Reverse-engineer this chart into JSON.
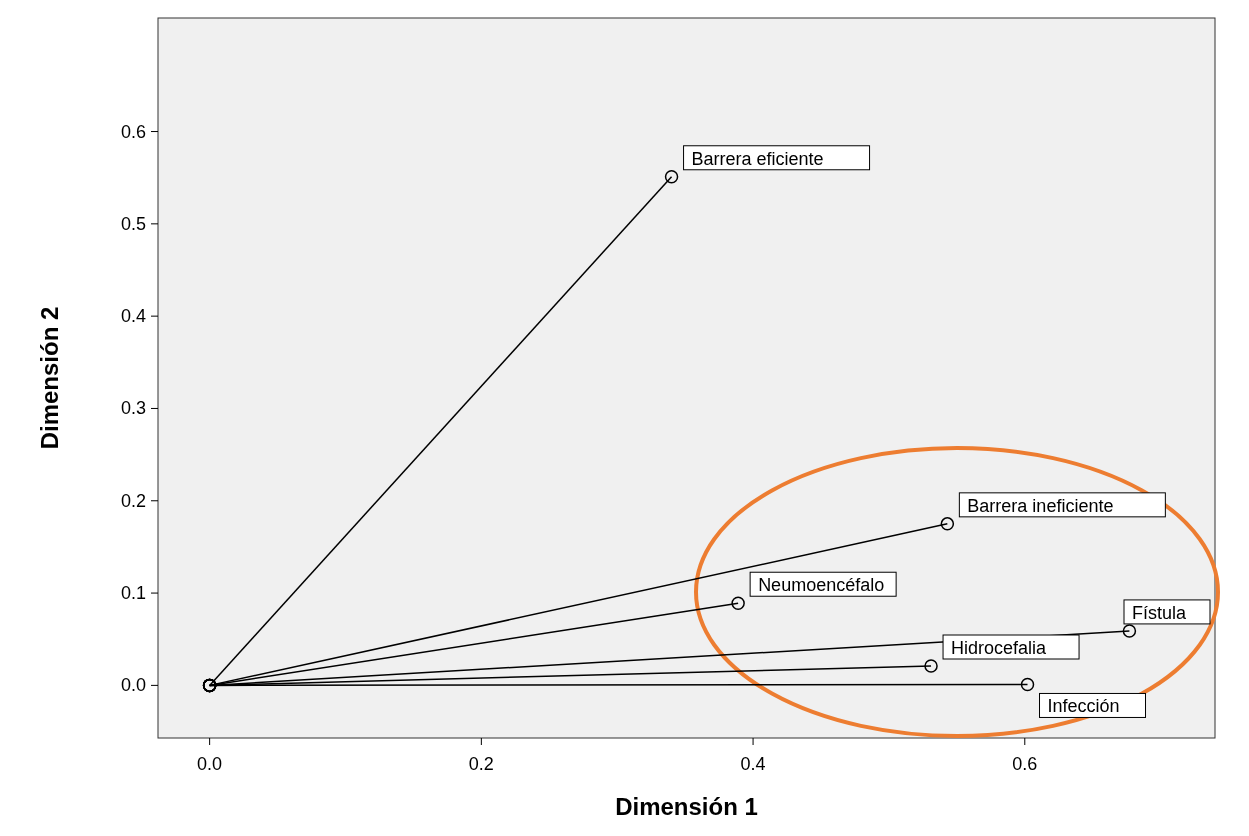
{
  "chart_data": {
    "type": "line",
    "xlabel": "Dimensión 1",
    "ylabel": "Dimensión 2",
    "xlim": [
      -0.038,
      0.74
    ],
    "ylim": [
      -0.057,
      0.723
    ],
    "xticks": [
      {
        "value": 0,
        "label": "0.0"
      },
      {
        "value": 0.2,
        "label": "0.2"
      },
      {
        "value": 0.4,
        "label": "0.4"
      },
      {
        "value": 0.6,
        "label": "0.6"
      }
    ],
    "yticks": [
      {
        "value": 0,
        "label": "0.0"
      },
      {
        "value": 0.1,
        "label": "0.1"
      },
      {
        "value": 0.2,
        "label": "0.2"
      },
      {
        "value": 0.3,
        "label": "0.3"
      },
      {
        "value": 0.4,
        "label": "0.4"
      },
      {
        "value": 0.5,
        "label": "0.5"
      },
      {
        "value": 0.6,
        "label": "0.6"
      }
    ],
    "grid": false,
    "marker": "circle",
    "line_style": "solid",
    "series": [
      {
        "name": "Barrera eficiente",
        "color": "#000000",
        "x": [
          0,
          0.34
        ],
        "values": [
          0,
          0.551
        ]
      },
      {
        "name": "Barrera ineficiente",
        "color": "#000000",
        "x": [
          0,
          0.543
        ],
        "values": [
          0,
          0.175
        ]
      },
      {
        "name": "Neumoencéfalo",
        "color": "#000000",
        "x": [
          0,
          0.389
        ],
        "values": [
          0,
          0.089
        ]
      },
      {
        "name": "Fístula",
        "color": "#000000",
        "x": [
          0,
          0.677
        ],
        "values": [
          0,
          0.059
        ]
      },
      {
        "name": "Hidrocefalia",
        "color": "#000000",
        "x": [
          0,
          0.531
        ],
        "values": [
          0,
          0.021
        ]
      },
      {
        "name": "Infección",
        "color": "#000000",
        "x": [
          0,
          0.602
        ],
        "values": [
          0,
          0.001
        ]
      }
    ]
  }
}
